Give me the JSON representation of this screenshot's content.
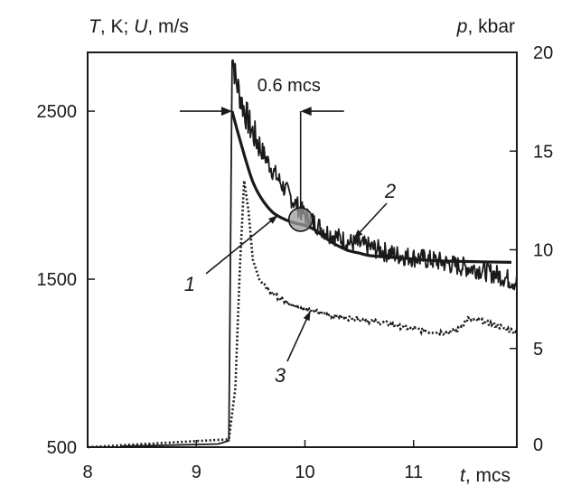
{
  "chart_data": {
    "type": "line",
    "title": "",
    "left_axis": {
      "title_parts": [
        {
          "text": "T",
          "italic": true
        },
        {
          "text": ", K; ",
          "italic": false
        },
        {
          "text": "U",
          "italic": true
        },
        {
          "text": ", m/s",
          "italic": false
        }
      ],
      "ylim": [
        500,
        2850
      ],
      "ticks": [
        500,
        1500,
        2500
      ]
    },
    "right_axis": {
      "title_parts": [
        {
          "text": "p",
          "italic": true
        },
        {
          "text": ", kbar",
          "italic": false
        }
      ],
      "ylim": [
        0,
        20
      ],
      "ticks": [
        0,
        5,
        10,
        15,
        20
      ]
    },
    "x_axis": {
      "title_parts": [
        {
          "text": "t",
          "italic": true
        },
        {
          "text": ", mcs",
          "italic": false
        }
      ],
      "xlim": [
        8,
        11.95
      ],
      "ticks": [
        8,
        9,
        10,
        11
      ]
    },
    "grid": false,
    "annotations": {
      "interval": "0.6 mcs",
      "interval_start_x": 9.33,
      "interval_end_x": 9.96,
      "interval_y": 2500,
      "marker_x": 9.96,
      "marker_y": 1855
    },
    "series": [
      {
        "label": "1",
        "axis": "left",
        "style": "solid-thick",
        "color": "#1a1a1a",
        "x": [
          9.33,
          9.38,
          9.45,
          9.52,
          9.6,
          9.7,
          9.8,
          9.9,
          10.0,
          10.1,
          10.2,
          10.3,
          10.4,
          10.5,
          10.6,
          10.8,
          11.0,
          11.2,
          11.5,
          11.9
        ],
        "y": [
          2500,
          2380,
          2220,
          2080,
          1980,
          1900,
          1860,
          1835,
          1820,
          1790,
          1740,
          1700,
          1670,
          1655,
          1640,
          1630,
          1620,
          1610,
          1605,
          1600
        ]
      },
      {
        "label": "2",
        "axis": "left",
        "style": "noisy-solid",
        "color": "#1a1a1a",
        "noise": 60,
        "x": [
          8.3,
          9.2,
          9.3,
          9.33,
          9.36,
          9.42,
          9.5,
          9.6,
          9.7,
          9.8,
          9.9,
          10.0,
          10.2,
          10.4,
          10.6,
          10.8,
          11.0,
          11.2,
          11.4,
          11.6,
          11.8,
          11.95
        ],
        "y": [
          505,
          520,
          530,
          2850,
          2700,
          2550,
          2400,
          2270,
          2150,
          2050,
          1960,
          1880,
          1780,
          1720,
          1690,
          1650,
          1630,
          1610,
          1580,
          1560,
          1520,
          1480
        ]
      },
      {
        "label": "3",
        "axis": "right",
        "style": "dotted",
        "color": "#1a1a1a",
        "x": [
          8.0,
          9.3,
          9.36,
          9.4,
          9.44,
          9.48,
          9.52,
          9.58,
          9.65,
          9.75,
          9.85,
          10.0,
          10.15,
          10.3,
          10.5,
          10.7,
          10.9,
          11.1,
          11.3,
          11.4,
          11.5,
          11.6,
          11.75,
          11.95
        ],
        "y": [
          0,
          0.4,
          3.0,
          9.0,
          13.5,
          12.0,
          9.5,
          8.5,
          8.0,
          7.6,
          7.3,
          7.0,
          6.8,
          6.6,
          6.5,
          6.3,
          6.1,
          5.9,
          5.8,
          5.9,
          6.5,
          6.4,
          6.2,
          5.8
        ]
      }
    ],
    "colors": {
      "ink": "#1a1a1a",
      "marker_fill": "#9a9a9a"
    }
  }
}
